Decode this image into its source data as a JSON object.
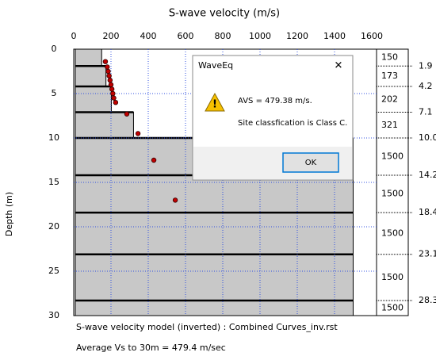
{
  "chart_data": {
    "type": "velocity-profile",
    "title": "S-wave velocity (m/s)",
    "ylabel": "Depth (m)",
    "xlim": [
      0,
      1600
    ],
    "xticks": [
      0,
      200,
      400,
      600,
      800,
      1000,
      1200,
      1400,
      1600
    ],
    "ylim": [
      0,
      30
    ],
    "yticks": [
      0,
      5,
      10,
      15,
      20,
      25,
      30
    ],
    "grid": true,
    "layers": {
      "velocity": [
        150,
        173,
        202,
        321,
        1500,
        1500,
        1500,
        1500,
        1500
      ],
      "bottom_depth": [
        1.9,
        4.2,
        7.1,
        {
          "value": 10,
          "label": "10.0"
        },
        14.2,
        18.4,
        23.1,
        28.3
      ],
      "color": "#c8c8c8"
    },
    "points": {
      "x": [
        170,
        180,
        185,
        190,
        195,
        200,
        205,
        210,
        215,
        225,
        285,
        345,
        430,
        545
      ],
      "y": [
        1.4,
        2.0,
        2.5,
        3.0,
        3.5,
        4.0,
        4.5,
        5.0,
        5.5,
        6.0,
        7.3,
        9.5,
        12.5,
        17.0
      ],
      "color": "#c00000"
    },
    "captions": [
      "S-wave velocity model (inverted) : Combined Curves_inv.rst",
      "Average Vs to 30m = 479.4 m/sec"
    ]
  },
  "dialog": {
    "title": "WaveEq",
    "lines": [
      "AVS = 479.38 m/s.",
      "Site classfication is Class C."
    ],
    "button": "OK"
  }
}
